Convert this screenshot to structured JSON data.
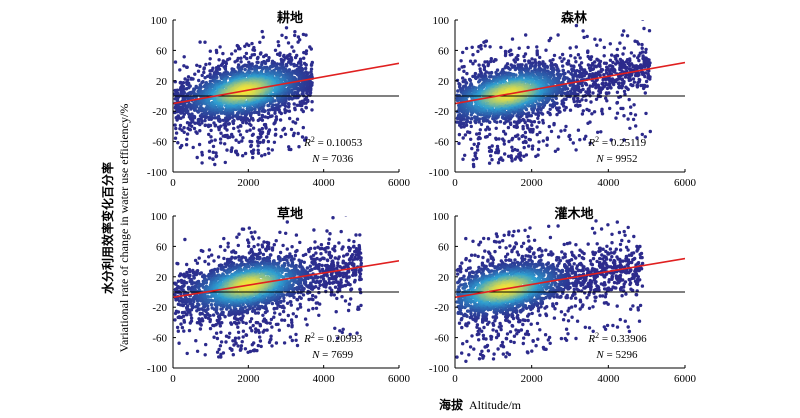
{
  "figure": {
    "xlabel_cn": "海拔",
    "xlabel_en": "Altitude/m",
    "ylabel_cn": "水分利用效率变化百分率",
    "ylabel_en": "Variational rate of change in water use efficiency/%"
  },
  "colors": {
    "point_low": "#2c2a8c",
    "point_mid": "#2e9fd1",
    "point_high": "#f2e33a",
    "fit_line": "#e02020",
    "zero_line": "#000000"
  },
  "chart_data": [
    {
      "type": "scatter",
      "title": "耕地",
      "xlim": [
        0,
        6000
      ],
      "ylim": [
        -100,
        100
      ],
      "xticks": [
        "0",
        "2000",
        "4000",
        "6000"
      ],
      "yticks": [
        "-100",
        "-60",
        "-20",
        "20",
        "60",
        "100"
      ],
      "x_range": [
        50,
        3700
      ],
      "density_peak_x": 1900,
      "fit": {
        "x": [
          0,
          6000
        ],
        "y": [
          -10,
          43
        ]
      },
      "r2_prefix": "R",
      "r2_value": " = 0.10053",
      "n_prefix": "N",
      "n_value": " = 7036",
      "seed": 11
    },
    {
      "type": "scatter",
      "title": "森林",
      "xlim": [
        0,
        6000
      ],
      "ylim": [
        -100,
        100
      ],
      "xticks": [
        "0",
        "2000",
        "4000",
        "6000"
      ],
      "yticks": [
        "-100",
        "-60",
        "-20",
        "20",
        "60",
        "100"
      ],
      "x_range": [
        50,
        5100
      ],
      "density_peak_x": 1400,
      "fit": {
        "x": [
          0,
          6000
        ],
        "y": [
          -10,
          44
        ]
      },
      "r2_prefix": "R",
      "r2_value": " = 0.25119",
      "n_prefix": "N",
      "n_value": " = 9952",
      "seed": 23
    },
    {
      "type": "scatter",
      "title": "草地",
      "xlim": [
        0,
        6000
      ],
      "ylim": [
        -100,
        100
      ],
      "xticks": [
        "0",
        "2000",
        "4000",
        "6000"
      ],
      "yticks": [
        "-100",
        "-60",
        "-20",
        "20",
        "60",
        "100"
      ],
      "x_range": [
        50,
        5000
      ],
      "density_peak_x": 2000,
      "fit": {
        "x": [
          0,
          6000
        ],
        "y": [
          -7,
          41
        ]
      },
      "r2_prefix": "R",
      "r2_value": " = 0.20993",
      "n_prefix": "N",
      "n_value": " = 7699",
      "seed": 37
    },
    {
      "type": "scatter",
      "title": "灌木地",
      "xlim": [
        0,
        6000
      ],
      "ylim": [
        -100,
        100
      ],
      "xticks": [
        "0",
        "2000",
        "4000",
        "6000"
      ],
      "yticks": [
        "-100",
        "-60",
        "-20",
        "20",
        "60",
        "100"
      ],
      "x_range": [
        50,
        4900
      ],
      "density_peak_x": 1300,
      "fit": {
        "x": [
          0,
          6000
        ],
        "y": [
          -7,
          44
        ]
      },
      "r2_prefix": "R",
      "r2_value": " = 0.33906",
      "n_prefix": "N",
      "n_value": " = 5296",
      "seed": 53
    }
  ]
}
